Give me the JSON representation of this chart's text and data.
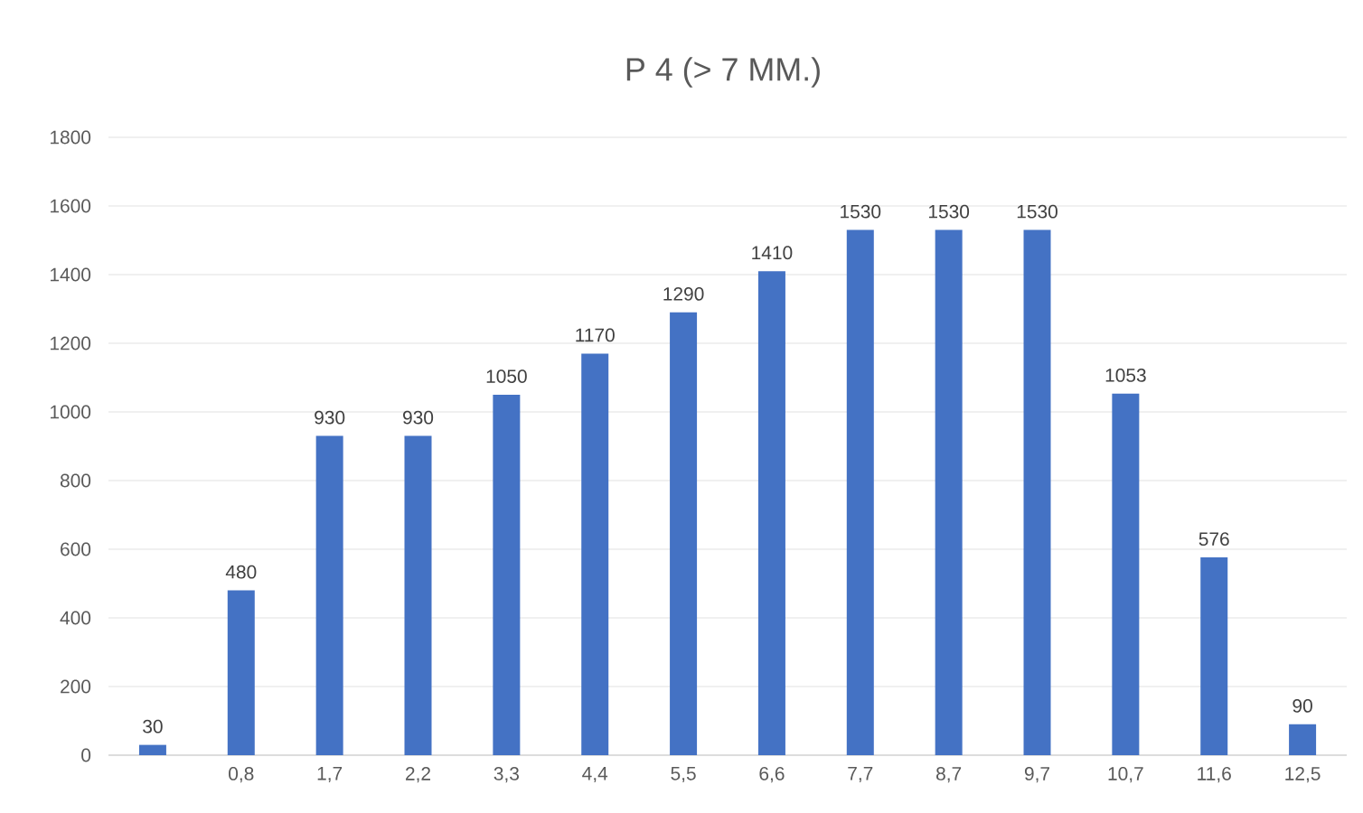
{
  "chart_data": {
    "type": "bar",
    "title": "P 4 (> 7 MM.)",
    "categories": [
      null,
      "0,8",
      "1,7",
      "2,2",
      "3,3",
      "4,4",
      "5,5",
      "6,6",
      "7,7",
      "8,7",
      "9,7",
      "10,7",
      "11,6",
      "12,5"
    ],
    "values": [
      30,
      480,
      930,
      930,
      1050,
      1170,
      1290,
      1410,
      1530,
      1530,
      1530,
      1053,
      576,
      90
    ],
    "color": "#4472c4",
    "ylim": [
      0,
      1800
    ],
    "yticks": [
      0,
      200,
      400,
      600,
      800,
      1000,
      1200,
      1400,
      1600,
      1800
    ],
    "grid": "y",
    "data_labels": true
  }
}
